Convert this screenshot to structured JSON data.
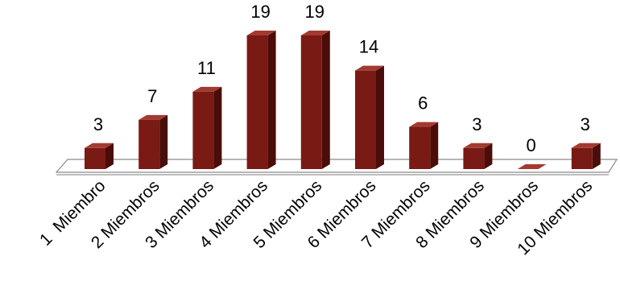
{
  "chart_data": {
    "type": "bar",
    "style": "3d-column",
    "categories": [
      "1  Miembro",
      "2 Miembros",
      "3 Miembros",
      "4 Miembros",
      "5 Miembros",
      "6 Miembros",
      "7 Miembros",
      "8 Miembros",
      "9 Miembros",
      "10 Miembros"
    ],
    "values": [
      3,
      7,
      11,
      19,
      19,
      14,
      6,
      3,
      0,
      3
    ],
    "data_labels": true,
    "title": "",
    "xlabel": "",
    "ylabel": "",
    "ylim": [
      0,
      19
    ],
    "grid": false,
    "legend": "none",
    "bar_color": "#7a1a14"
  }
}
